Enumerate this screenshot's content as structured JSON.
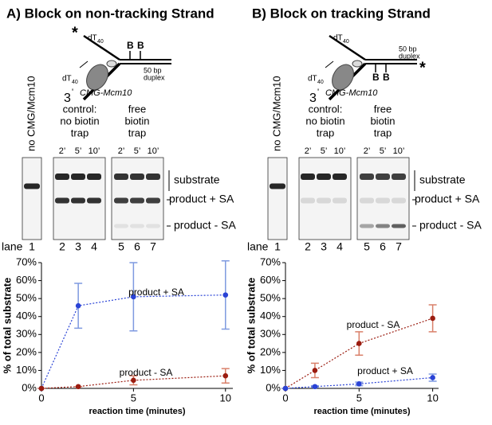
{
  "panels": [
    {
      "title": "A) Block on non-tracking Strand",
      "diagram": {
        "star": "*",
        "dt": "dT",
        "dt_sub": "40",
        "b1": "B",
        "b2": "B",
        "duplex1": "50 bp",
        "duplex2": "duplex",
        "three": "3",
        "prime": "'",
        "protein": "CMG-Mcm10"
      },
      "gel": {
        "no_cmg": "no CMG/Mcm10",
        "control": [
          "control:",
          "no biotin",
          "trap"
        ],
        "free": [
          "free",
          "biotin",
          "trap"
        ],
        "times": [
          "2’",
          "5’",
          "10’",
          "2’",
          "5’",
          "10’"
        ],
        "substrate": "substrate",
        "product_plus": "product + SA",
        "product_minus": "product - SA",
        "lane": "lane",
        "lanes": [
          "1",
          "2",
          "3",
          "4",
          "5",
          "6",
          "7"
        ]
      }
    },
    {
      "title": "B) Block on tracking Strand",
      "diagram": {
        "star": "*",
        "dt": "dT",
        "dt_sub": "40",
        "b1": "B",
        "b2": "B",
        "duplex1": "50 bp",
        "duplex2": "duplex",
        "three": "3",
        "prime": "'",
        "protein": "CMG-Mcm10"
      },
      "gel": {
        "no_cmg": "no CMG/Mcm10",
        "control": [
          "control:",
          "no biotin",
          "trap"
        ],
        "free": [
          "free",
          "biotin",
          "trap"
        ],
        "times": [
          "2’",
          "5’",
          "10’",
          "2’",
          "5’",
          "10’"
        ],
        "substrate": "substrate",
        "product_plus": "product + SA",
        "product_minus": "product - SA",
        "lane": "lane",
        "lanes": [
          "1",
          "2",
          "3",
          "4",
          "5",
          "6",
          "7"
        ]
      }
    }
  ],
  "chart_data": [
    {
      "type": "line",
      "xlabel": "reaction time (minutes)",
      "ylabel": "% of total substrate",
      "xlim": [
        0,
        10.4
      ],
      "xticks": [
        0,
        5,
        10
      ],
      "ylim": [
        0,
        70
      ],
      "yticks": [
        {
          "value": 0,
          "label": "0%"
        },
        {
          "value": 10,
          "label": "10%"
        },
        {
          "value": 20,
          "label": "20%"
        },
        {
          "value": 30,
          "label": "30%"
        },
        {
          "value": 40,
          "label": "40%"
        },
        {
          "value": 50,
          "label": "50%"
        },
        {
          "value": 60,
          "label": "60%"
        },
        {
          "value": 70,
          "label": "70%"
        }
      ],
      "series": [
        {
          "name": "product + SA",
          "color": "#2a43d6",
          "error_color": "#7f9ae0",
          "x": [
            0,
            2,
            5,
            10
          ],
          "values": [
            0,
            46,
            51,
            52
          ],
          "errors": [
            0,
            12.5,
            19,
            19
          ]
        },
        {
          "name": "product - SA",
          "color": "#9b1c10",
          "error_color": "#d9806a",
          "x": [
            0,
            2,
            5,
            10
          ],
          "values": [
            0,
            1,
            4.5,
            7
          ],
          "errors": [
            0,
            0,
            2.5,
            4
          ]
        }
      ]
    },
    {
      "type": "line",
      "xlabel": "reaction time (minutes)",
      "ylabel": "% of total substrate",
      "xlim": [
        0,
        10.4
      ],
      "xticks": [
        0,
        5,
        10
      ],
      "ylim": [
        0,
        70
      ],
      "yticks": [
        {
          "value": 0,
          "label": "0%"
        },
        {
          "value": 10,
          "label": "10%"
        },
        {
          "value": 20,
          "label": "20%"
        },
        {
          "value": 30,
          "label": "30%"
        },
        {
          "value": 40,
          "label": "40%"
        },
        {
          "value": 50,
          "label": "50%"
        },
        {
          "value": 60,
          "label": "60%"
        },
        {
          "value": 70,
          "label": "70%"
        }
      ],
      "series": [
        {
          "name": "product - SA",
          "color": "#9b1c10",
          "error_color": "#d9806a",
          "x": [
            0,
            2,
            5,
            10
          ],
          "values": [
            0,
            10,
            25,
            39
          ],
          "errors": [
            0,
            4,
            6.5,
            7.5
          ]
        },
        {
          "name": "product + SA",
          "color": "#2a43d6",
          "error_color": "#7f9ae0",
          "x": [
            0,
            2,
            5,
            10
          ],
          "values": [
            0,
            1,
            2.5,
            6
          ],
          "errors": [
            0,
            0.5,
            1,
            2
          ]
        }
      ]
    }
  ]
}
